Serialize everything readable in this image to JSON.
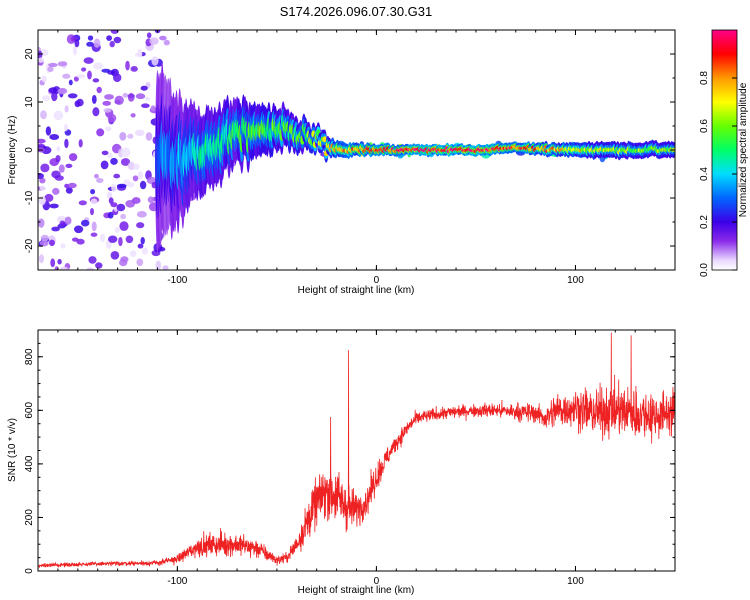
{
  "title": "S174.2026.096.07.30.G31",
  "colors": {
    "snr_line": "#ee2222",
    "axis": "#000000"
  },
  "colorbar": {
    "label": "Normalized spectral amplitude",
    "ticks": [
      "0.0",
      "0.2",
      "0.4",
      "0.6",
      "0.8"
    ],
    "tick_values": [
      0.0,
      0.2,
      0.4,
      0.6,
      0.8
    ],
    "range": [
      0,
      1
    ]
  },
  "chart_data": [
    {
      "type": "heatmap",
      "title": "S174.2026.096.07.30.G31",
      "xlabel": "Height of straight line (km)",
      "ylabel": "Frequency (Hz)",
      "xlim": [
        -170,
        150
      ],
      "ylim": [
        -25,
        25
      ],
      "xticks": [
        -100,
        0,
        100
      ],
      "xtick_labels": [
        "-100",
        "0",
        "100"
      ],
      "yticks": [
        -20,
        -10,
        0,
        10,
        20
      ],
      "ytick_labels": [
        "-20",
        "-10",
        "0",
        "10",
        "20"
      ],
      "ridge": {
        "description": "frequency trace of maximum amplitude",
        "x": [
          -170,
          -150,
          -120,
          -100,
          -90,
          -80,
          -70,
          -60,
          -50,
          -40,
          -30,
          -20,
          -10,
          0,
          20,
          50,
          70,
          90,
          110,
          130,
          150
        ],
        "freq": [
          0,
          0,
          -1,
          -2,
          -1,
          1,
          3,
          4,
          4,
          4,
          2,
          0,
          0,
          0,
          0,
          0,
          0.5,
          0,
          0,
          0,
          0
        ],
        "amplitude": [
          0.15,
          0.2,
          0.25,
          0.35,
          0.45,
          0.5,
          0.5,
          0.55,
          0.55,
          0.55,
          0.6,
          0.75,
          0.85,
          0.9,
          0.95,
          0.95,
          0.9,
          0.75,
          0.65,
          0.6,
          0.6
        ],
        "spread_hz": [
          25,
          25,
          22,
          12,
          8,
          7,
          6,
          5,
          4,
          3,
          2,
          1.5,
          1.2,
          1,
          1,
          1,
          1,
          1.2,
          1.5,
          1.5,
          1.5
        ]
      }
    },
    {
      "type": "line",
      "title": "",
      "xlabel": "Height of straight line (km)",
      "ylabel": "SNR (10 * v/v)",
      "xlim": [
        -170,
        150
      ],
      "ylim": [
        0,
        900
      ],
      "xticks": [
        -100,
        0,
        100
      ],
      "xtick_labels": [
        "-100",
        "0",
        "100"
      ],
      "yticks": [
        0,
        200,
        400,
        600,
        800
      ],
      "ytick_labels": [
        "0",
        "200",
        "400",
        "600",
        "800"
      ],
      "series": [
        {
          "name": "SNR",
          "x": [
            -170,
            -150,
            -130,
            -110,
            -100,
            -90,
            -80,
            -70,
            -60,
            -50,
            -45,
            -40,
            -35,
            -30,
            -25,
            -20,
            -15,
            -10,
            -5,
            0,
            5,
            10,
            15,
            20,
            30,
            40,
            50,
            60,
            70,
            80,
            85,
            90,
            100,
            110,
            120,
            130,
            140,
            150
          ],
          "mean": [
            20,
            25,
            28,
            30,
            45,
            90,
            100,
            100,
            85,
            40,
            50,
            100,
            180,
            260,
            300,
            280,
            240,
            230,
            260,
            350,
            420,
            480,
            530,
            570,
            585,
            595,
            600,
            600,
            595,
            590,
            570,
            600,
            610,
            590,
            600,
            590,
            580,
            600
          ],
          "noise": [
            8,
            10,
            10,
            12,
            20,
            45,
            55,
            55,
            45,
            20,
            25,
            50,
            90,
            110,
            120,
            130,
            110,
            80,
            70,
            70,
            50,
            40,
            35,
            30,
            30,
            30,
            30,
            35,
            40,
            45,
            55,
            80,
            90,
            110,
            120,
            120,
            110,
            100
          ],
          "spikes": [
            {
              "x": -14,
              "y": 825
            },
            {
              "x": -23,
              "y": 575
            },
            {
              "x": 118,
              "y": 890
            },
            {
              "x": 128,
              "y": 880
            }
          ]
        }
      ]
    }
  ]
}
